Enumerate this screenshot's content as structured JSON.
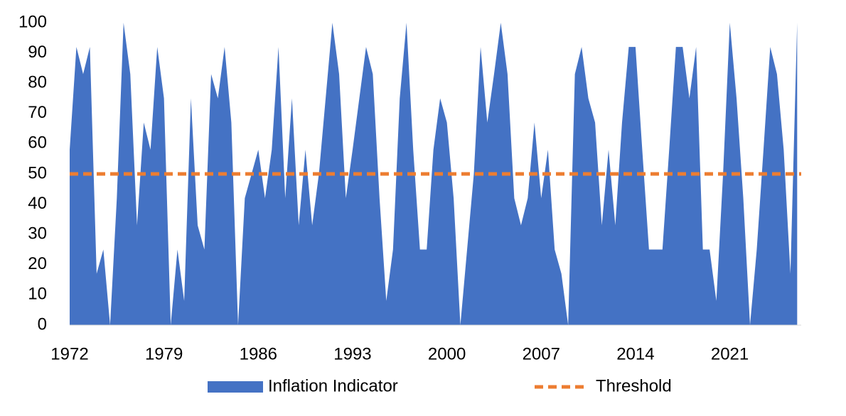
{
  "chart_data": {
    "type": "area",
    "x": [
      1972,
      1972.5,
      1973,
      1973.5,
      1974,
      1974.5,
      1975,
      1975.5,
      1976,
      1976.5,
      1977,
      1977.5,
      1978,
      1978.5,
      1979,
      1979.5,
      1980,
      1980.5,
      1981,
      1981.5,
      1982,
      1982.5,
      1983,
      1983.5,
      1984,
      1984.5,
      1985,
      1985.5,
      1986,
      1986.5,
      1987,
      1987.5,
      1988,
      1988.5,
      1989,
      1989.5,
      1990,
      1990.5,
      1991,
      1991.5,
      1992,
      1992.5,
      1993,
      1993.5,
      1994,
      1994.5,
      1995,
      1995.5,
      1996,
      1996.5,
      1997,
      1997.5,
      1998,
      1998.5,
      1999,
      1999.5,
      2000,
      2000.5,
      2001,
      2001.5,
      2002,
      2002.5,
      2003,
      2003.5,
      2004,
      2004.5,
      2005,
      2005.5,
      2006,
      2006.5,
      2007,
      2007.5,
      2008,
      2008.5,
      2009,
      2009.5,
      2010,
      2010.5,
      2011,
      2011.5,
      2012,
      2012.5,
      2013,
      2013.5,
      2014,
      2014.5,
      2015,
      2015.5,
      2016,
      2016.5,
      2017,
      2017.5,
      2018,
      2018.5,
      2019,
      2019.5,
      2020,
      2020.5,
      2021,
      2021.5,
      2022,
      2022.5,
      2023,
      2023.5,
      2024,
      2024.5,
      2025,
      2025.5,
      2026
    ],
    "series": [
      {
        "name": "Inflation Indicator",
        "color": "#4472c4",
        "values": [
          58,
          92,
          83,
          92,
          17,
          25,
          0,
          42,
          100,
          83,
          33,
          67,
          58,
          92,
          75,
          0,
          25,
          8,
          75,
          33,
          25,
          83,
          75,
          92,
          67,
          0,
          42,
          50,
          58,
          42,
          58,
          92,
          42,
          75,
          33,
          58,
          33,
          50,
          75,
          100,
          83,
          42,
          58,
          75,
          92,
          83,
          42,
          8,
          25,
          75,
          100,
          58,
          25,
          25,
          58,
          75,
          67,
          42,
          0,
          25,
          50,
          92,
          67,
          83,
          100,
          83,
          42,
          33,
          42,
          67,
          42,
          58,
          25,
          17,
          0,
          83,
          92,
          75,
          67,
          33,
          58,
          33,
          67,
          92,
          92,
          58,
          25,
          25,
          25,
          58,
          92,
          92,
          75,
          92,
          25,
          25,
          8,
          50,
          100,
          75,
          42,
          0,
          25,
          58,
          92,
          83,
          58,
          17,
          100
        ]
      }
    ],
    "threshold": {
      "name": "Threshold",
      "value": 50,
      "color": "#ed7d31"
    },
    "xlim": [
      1972,
      2026.3
    ],
    "xticks": [
      1972,
      1979,
      1986,
      1993,
      2000,
      2007,
      2014,
      2021
    ],
    "ylim": [
      0,
      100
    ],
    "yticks": [
      0,
      10,
      20,
      30,
      40,
      50,
      60,
      70,
      80,
      90,
      100
    ],
    "grid": false
  }
}
